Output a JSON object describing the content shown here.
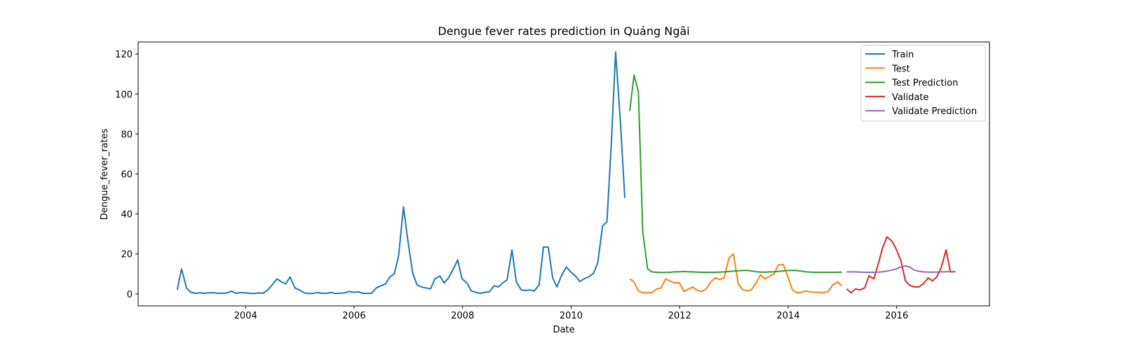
{
  "chart_data": {
    "type": "line",
    "title": "Dengue fever rates prediction in Quảng Ngãi",
    "xlabel": "Date",
    "ylabel": "Dengue_fever_rates",
    "xlim": [
      2002.02,
      2017.71
    ],
    "ylim": [
      -6,
      126
    ],
    "x_ticks": [
      2004,
      2006,
      2008,
      2010,
      2012,
      2014,
      2016
    ],
    "x_tick_labels": [
      "2004",
      "2006",
      "2008",
      "2010",
      "2012",
      "2014",
      "2016"
    ],
    "y_ticks": [
      0,
      20,
      40,
      60,
      80,
      100,
      120
    ],
    "y_tick_labels": [
      "0",
      "20",
      "40",
      "60",
      "80",
      "100",
      "120"
    ],
    "grid": false,
    "legend_position": "top-right",
    "series": [
      {
        "name": "Train",
        "color": "#1f77b4",
        "x": [
          2002.74,
          2002.82,
          2002.91,
          2002.99,
          2003.08,
          2003.16,
          2003.24,
          2003.32,
          2003.41,
          2003.49,
          2003.58,
          2003.66,
          2003.74,
          2003.82,
          2003.91,
          2003.99,
          2004.08,
          2004.16,
          2004.24,
          2004.32,
          2004.41,
          2004.49,
          2004.58,
          2004.66,
          2004.74,
          2004.82,
          2004.91,
          2004.99,
          2005.08,
          2005.16,
          2005.24,
          2005.32,
          2005.41,
          2005.49,
          2005.58,
          2005.66,
          2005.74,
          2005.82,
          2005.91,
          2005.99,
          2006.08,
          2006.16,
          2006.24,
          2006.32,
          2006.41,
          2006.49,
          2006.58,
          2006.66,
          2006.74,
          2006.82,
          2006.91,
          2006.99,
          2007.08,
          2007.16,
          2007.24,
          2007.32,
          2007.41,
          2007.49,
          2007.58,
          2007.66,
          2007.74,
          2007.82,
          2007.91,
          2007.99,
          2008.08,
          2008.16,
          2008.24,
          2008.32,
          2008.41,
          2008.49,
          2008.58,
          2008.66,
          2008.74,
          2008.82,
          2008.91,
          2008.99,
          2009.08,
          2009.16,
          2009.24,
          2009.32,
          2009.41,
          2009.49,
          2009.58,
          2009.66,
          2009.74,
          2009.82,
          2009.91,
          2009.99,
          2010.08,
          2010.16,
          2010.24,
          2010.32,
          2010.41,
          2010.49,
          2010.58,
          2010.66,
          2010.74,
          2010.82,
          2010.91,
          2010.99
        ],
        "values": [
          2,
          12.5,
          3,
          0.8,
          0.3,
          0.5,
          0.3,
          0.5,
          0.6,
          0.3,
          0.3,
          0.5,
          1.4,
          0.3,
          0.7,
          0.5,
          0.3,
          0.2,
          0.5,
          0.3,
          2,
          4.5,
          7.5,
          6,
          5,
          8.5,
          3,
          2,
          0.5,
          0.2,
          0.2,
          0.7,
          0.3,
          0.3,
          0.7,
          0.2,
          0.3,
          0.5,
          1.2,
          0.8,
          1,
          0.3,
          0.3,
          0.3,
          3,
          4,
          5,
          8.5,
          10,
          19,
          43.5,
          27,
          10.5,
          4.5,
          3.5,
          3,
          2.5,
          7.5,
          9,
          5.5,
          8,
          12,
          17,
          7.5,
          5.5,
          1.5,
          0.8,
          0.3,
          0.8,
          1,
          4,
          3.5,
          5.5,
          7,
          22,
          6,
          2,
          1.7,
          2,
          1.5,
          4.5,
          23.5,
          23.3,
          8,
          3.5,
          9,
          13.5,
          11,
          9,
          6.2,
          7.5,
          8.5,
          10.2,
          15.5,
          34,
          36,
          75,
          121,
          85,
          48
        ]
      },
      {
        "name": "Test",
        "color": "#ff7f0e",
        "x": [
          2011.08,
          2011.16,
          2011.24,
          2011.32,
          2011.41,
          2011.49,
          2011.58,
          2011.66,
          2011.74,
          2011.82,
          2011.91,
          2011.99,
          2012.08,
          2012.16,
          2012.24,
          2012.32,
          2012.41,
          2012.49,
          2012.58,
          2012.66,
          2012.74,
          2012.82,
          2012.91,
          2012.99,
          2013.08,
          2013.16,
          2013.24,
          2013.32,
          2013.41,
          2013.49,
          2013.58,
          2013.66,
          2013.74,
          2013.82,
          2013.91,
          2013.99,
          2014.08,
          2014.16,
          2014.24,
          2014.32,
          2014.41,
          2014.49,
          2014.58,
          2014.66,
          2014.74,
          2014.82,
          2014.91,
          2014.99
        ],
        "values": [
          7.5,
          6,
          1.5,
          0.5,
          0.5,
          0.7,
          2.5,
          3,
          7.5,
          6.5,
          5.5,
          5.7,
          1.2,
          2.3,
          3.5,
          1.8,
          1.2,
          2.5,
          6.3,
          8,
          7.2,
          8,
          18,
          20,
          5,
          2.2,
          1.5,
          2,
          5.5,
          9.5,
          7.5,
          9,
          10,
          14.5,
          14.7,
          9,
          2,
          0.5,
          0.8,
          1.5,
          1,
          0.8,
          0.8,
          0.6,
          1.3,
          4.5,
          6,
          4
        ]
      },
      {
        "name": "Test Prediction",
        "color": "#2ca02c",
        "x": [
          2011.08,
          2011.16,
          2011.24,
          2011.32,
          2011.41,
          2011.49,
          2011.58,
          2011.66,
          2011.74,
          2011.82,
          2011.91,
          2011.99,
          2012.08,
          2012.16,
          2012.24,
          2012.32,
          2012.41,
          2012.49,
          2012.58,
          2012.66,
          2012.74,
          2012.82,
          2012.91,
          2012.99,
          2013.08,
          2013.16,
          2013.24,
          2013.32,
          2013.41,
          2013.49,
          2013.58,
          2013.66,
          2013.74,
          2013.82,
          2013.91,
          2013.99,
          2014.08,
          2014.16,
          2014.24,
          2014.32,
          2014.41,
          2014.49,
          2014.58,
          2014.66,
          2014.74,
          2014.82,
          2014.91,
          2014.99
        ],
        "values": [
          91.5,
          109.5,
          101,
          31,
          12.5,
          11,
          10.8,
          10.7,
          10.7,
          10.8,
          11,
          11.1,
          11.2,
          11.1,
          11,
          10.9,
          10.8,
          10.8,
          10.8,
          10.8,
          10.9,
          11,
          11.2,
          11.4,
          11.6,
          11.7,
          11.7,
          11.5,
          11.1,
          10.9,
          10.9,
          11,
          11.1,
          11.3,
          11.5,
          11.7,
          11.8,
          11.7,
          11.4,
          11.1,
          10.9,
          10.8,
          10.8,
          10.8,
          10.8,
          10.8,
          10.8,
          10.9
        ]
      },
      {
        "name": "Validate",
        "color": "#d62728",
        "x": [
          2015.08,
          2015.16,
          2015.24,
          2015.32,
          2015.41,
          2015.49,
          2015.58,
          2015.66,
          2015.74,
          2015.82,
          2015.91,
          2015.99,
          2016.08,
          2016.16,
          2016.24,
          2016.32,
          2016.41,
          2016.49,
          2016.58,
          2016.66,
          2016.74,
          2016.82,
          2016.91,
          2016.99,
          2017.08
        ],
        "values": [
          2.5,
          0.5,
          2.5,
          2,
          3,
          9,
          7.5,
          15,
          23,
          28.5,
          26.5,
          22.5,
          16.5,
          6.5,
          4.3,
          3.5,
          3.5,
          5,
          8,
          6.5,
          8.5,
          13,
          22,
          11,
          11
        ]
      },
      {
        "name": "Validate Prediction",
        "color": "#9467bd",
        "x": [
          2015.08,
          2015.16,
          2015.24,
          2015.32,
          2015.41,
          2015.49,
          2015.58,
          2015.66,
          2015.74,
          2015.82,
          2015.91,
          2015.99,
          2016.08,
          2016.16,
          2016.24,
          2016.32,
          2016.41,
          2016.49,
          2016.58,
          2016.66,
          2016.74,
          2016.82,
          2016.91,
          2016.99,
          2017.08
        ],
        "values": [
          11,
          11,
          11,
          10.9,
          10.8,
          10.8,
          10.8,
          10.9,
          11.1,
          11.4,
          11.9,
          12.5,
          13.5,
          14,
          13.5,
          12,
          11.3,
          11,
          10.9,
          10.9,
          10.9,
          11,
          11.1,
          11.2,
          11.2
        ]
      }
    ]
  }
}
